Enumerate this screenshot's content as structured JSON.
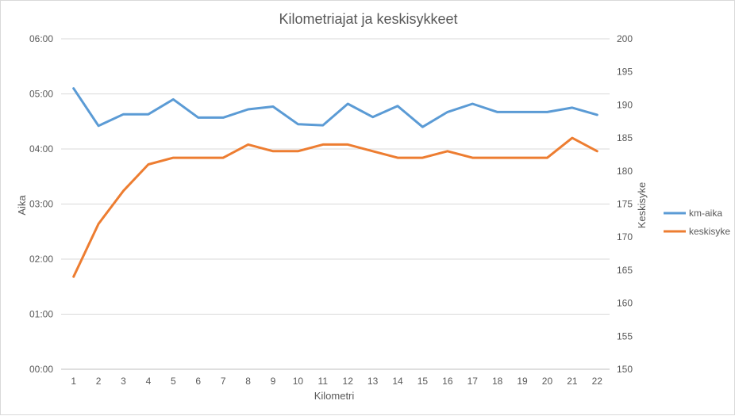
{
  "chart_data": {
    "type": "line",
    "title": "Kilometriajat ja keskisykkeet",
    "xlabel": "Kilometri",
    "ylabel": "Aika",
    "y2label": "Keskisyke",
    "categories": [
      "1",
      "2",
      "3",
      "4",
      "5",
      "6",
      "7",
      "8",
      "9",
      "10",
      "11",
      "12",
      "13",
      "14",
      "15",
      "16",
      "17",
      "18",
      "19",
      "20",
      "21",
      "22"
    ],
    "y_ticks": [
      "00:00",
      "01:00",
      "02:00",
      "03:00",
      "04:00",
      "05:00",
      "06:00"
    ],
    "ylim": [
      0,
      6
    ],
    "y2lim": [
      150,
      200
    ],
    "y2_ticks": [
      "150",
      "155",
      "160",
      "165",
      "170",
      "175",
      "180",
      "185",
      "190",
      "195",
      "200"
    ],
    "grid": true,
    "legend": "right",
    "series": [
      {
        "name": "km-aika",
        "axis": "left",
        "color": "#5b9bd5",
        "values": [
          5.1,
          4.42,
          4.63,
          4.63,
          4.9,
          4.57,
          4.57,
          4.72,
          4.77,
          4.45,
          4.43,
          4.82,
          4.58,
          4.78,
          4.4,
          4.67,
          4.82,
          4.67,
          4.67,
          4.67,
          4.75,
          4.62
        ]
      },
      {
        "name": "keskisyke",
        "axis": "right",
        "color": "#ed7d31",
        "values": [
          164,
          172,
          177,
          181,
          182,
          182,
          182,
          184,
          183,
          183,
          184,
          184,
          183,
          182,
          182,
          183,
          182,
          182,
          182,
          182,
          185,
          183
        ]
      }
    ]
  }
}
